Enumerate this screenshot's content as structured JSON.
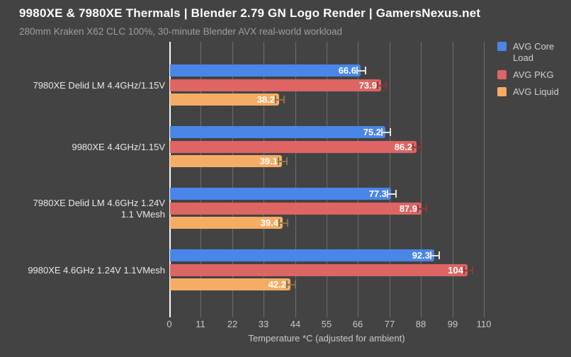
{
  "header": {
    "title": "9980XE & 7980XE Thermals | Blender 2.79 GN Logo Render | GamersNexus.net",
    "subtitle": "280mm Kraken X62 CLC 100%, 30-minute Blender AVX real-world workload"
  },
  "colors": {
    "background": "#434343",
    "grid": "#6e6e6e",
    "zero_line": "#fafafa",
    "title": "#fdfdfd",
    "subtitle": "#9e9e9e",
    "tick_label": "#c9c9c9",
    "category_label": "#e8e8e8",
    "value_label": "#ffffff",
    "legend_label": "#d0d0d0"
  },
  "chart_data": {
    "type": "bar",
    "orientation": "horizontal",
    "title": "9980XE & 7980XE Thermals | Blender 2.79 GN Logo Render | GamersNexus.net",
    "subtitle": "280mm Kraken X62 CLC 100%, 30-minute Blender AVX real-world workload",
    "categories": [
      "7980XE Delid LM 4.4GHz/1.15V",
      "9980XE 4.4GHz/1.15V",
      "7980XE Delid LM 4.6GHz 1.24V 1.1 VMesh",
      "9980XE 4.6GHz 1.24V 1.1VMesh"
    ],
    "series": [
      {
        "name": "AVG Core Load",
        "color": "#4a86e8",
        "error_color": "#e3e3e3",
        "values": [
          66.6,
          75.2,
          77.3,
          92.3
        ]
      },
      {
        "name": "AVG PKG",
        "color": "#dd6563",
        "error_color": "#8a3a3a",
        "values": [
          73.9,
          86.2,
          87.9,
          104
        ]
      },
      {
        "name": "AVG Liquid",
        "color": "#f5ad65",
        "error_color": "#8a7248",
        "values": [
          38.2,
          39.1,
          39.4,
          42.2
        ]
      }
    ],
    "xlabel": "Temperature *C (adjusted for ambient)",
    "x_ticks": [
      0,
      11,
      22,
      33,
      44,
      55,
      66,
      77,
      88,
      99,
      110
    ],
    "xlim": [
      0,
      110
    ],
    "grid": true,
    "error_bars": true,
    "legend_position": "right",
    "value_labels_shown": true
  }
}
